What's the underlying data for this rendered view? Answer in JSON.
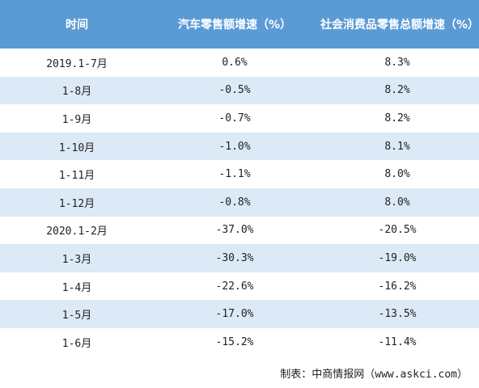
{
  "table": {
    "header": [
      "时间",
      "汽车零售额增速（%）",
      "社会消费品零售总额增速（%）"
    ],
    "rows": [
      [
        "2019.1-7月",
        "0.6%",
        "8.3%"
      ],
      [
        "1-8月",
        "-0.5%",
        "8.2%"
      ],
      [
        "1-9月",
        "-0.7%",
        "8.2%"
      ],
      [
        "1-10月",
        "-1.0%",
        "8.1%"
      ],
      [
        "1-11月",
        "-1.1%",
        "8.0%"
      ],
      [
        "1-12月",
        "-0.8%",
        "8.0%"
      ],
      [
        "2020.1-2月",
        "-37.0%",
        "-20.5%"
      ],
      [
        "1-3月",
        "-30.3%",
        "-19.0%"
      ],
      [
        "1-4月",
        "-22.6%",
        "-16.2%"
      ],
      [
        "1-5月",
        "-17.0%",
        "-13.5%"
      ],
      [
        "1-6月",
        "-15.2%",
        "-11.4%"
      ]
    ]
  },
  "footer": {
    "source": "制表：中商情报网（www.askci.com）"
  }
}
